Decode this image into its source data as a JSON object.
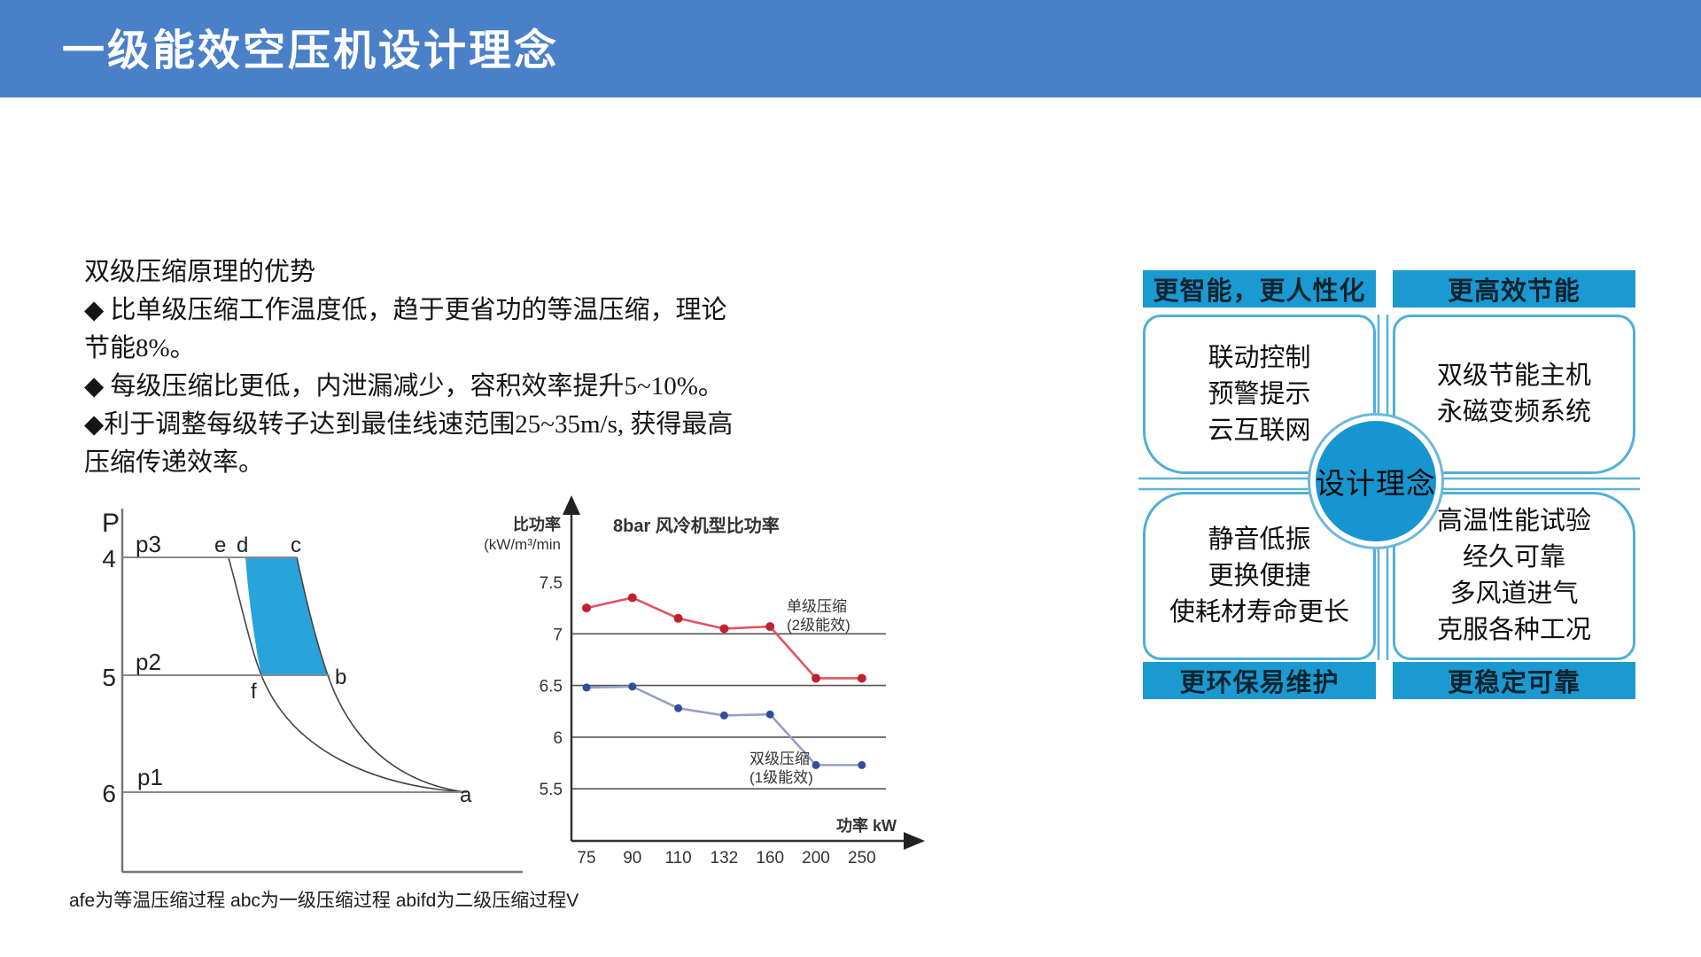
{
  "header": {
    "title": "一级能效空压机设计理念",
    "bar_color": "#4a80c8"
  },
  "intro": {
    "lines": [
      "双级压缩原理的优势",
      "◆ 比单级压缩工作温度低，趋于更省功的等温压缩，理论",
      "节能8%。",
      "◆ 每级压缩比更低，内泄漏减少，容积效率提升5~10%。",
      "◆利于调整每级转子达到最佳线速范围25~35m/s, 获得最高",
      "压缩传递效率。"
    ]
  },
  "pv_diagram": {
    "axis_label_p": "P",
    "yticks": [
      "4",
      "5",
      "6"
    ],
    "isobar_labels": [
      "p3",
      "p2",
      "p1"
    ],
    "points": {
      "e": "e",
      "d": "d",
      "c": "c",
      "f": "f",
      "b": "b",
      "a": "a"
    },
    "region_color": "#29a3dc",
    "footnote": "afe为等温压缩过程 abc为一级压缩过程 abifd为二级压缩过程V"
  },
  "chart_data": {
    "type": "line",
    "title": "8bar 风冷机型比功率",
    "ylabel": "比功率(kW/m³/min",
    "ylabel_lines": [
      "比功率",
      "(kW/m³/min"
    ],
    "xlabel": "功率 kW",
    "x": [
      75,
      90,
      110,
      132,
      160,
      200,
      250
    ],
    "yticks": [
      7.5,
      7,
      6.5,
      6,
      5.5
    ],
    "ylim": [
      5.0,
      7.75
    ],
    "grid": true,
    "legend_position": "inline-annotations",
    "series": [
      {
        "name": "单级压缩(2级能效)",
        "label_lines": [
          "单级压缩",
          "(2级能效)"
        ],
        "line_color": "#e0535f",
        "point_color": "#c21f2f",
        "values": [
          7.25,
          7.35,
          7.15,
          7.05,
          7.07,
          6.57,
          6.57
        ]
      },
      {
        "name": "双级压缩(1级能效)",
        "label_lines": [
          "双级压缩",
          "(1级能效)"
        ],
        "line_color": "#93a1c5",
        "point_color": "#2f4f9e",
        "values": [
          6.48,
          6.49,
          6.28,
          6.21,
          6.22,
          5.73,
          5.73
        ]
      }
    ]
  },
  "design_map": {
    "center_label": "设计理念",
    "accent_color": "#1b9ad2",
    "quadrants": [
      {
        "header": "更智能，更人性化",
        "lines": [
          "联动控制",
          "预警提示",
          "云互联网"
        ]
      },
      {
        "header": "更高效节能",
        "lines": [
          "双级节能主机",
          "永磁变频系统"
        ]
      },
      {
        "header": "更环保易维护",
        "lines": [
          "静音低振",
          "更换便捷",
          "使耗材寿命更长"
        ]
      },
      {
        "header": "更稳定可靠",
        "lines": [
          "高温性能试验",
          "经久可靠",
          "多风道进气",
          "克服各种工况"
        ]
      }
    ]
  }
}
